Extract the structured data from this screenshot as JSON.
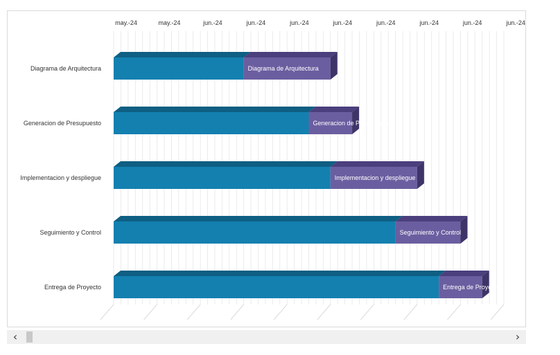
{
  "chart_data": {
    "type": "bar",
    "orientation": "horizontal",
    "stacked": true,
    "three_d": true,
    "x_tick_labels": [
      "may.-24",
      "may.-24",
      "jun.-24",
      "jun.-24",
      "jun.-24",
      "jun.-24",
      "jun.-24",
      "jun.-24",
      "jun.-24",
      "jun.-24"
    ],
    "xlim": [
      0,
      18
    ],
    "grid": true,
    "categories": [
      "Diagrama de Arquitectura",
      "Generacion de Presupuesto",
      "Implementacion y despliegue",
      "Seguimiento y Control",
      "Entrega de Proyecto"
    ],
    "series": [
      {
        "values": [
          6,
          9,
          10,
          13,
          15
        ],
        "color": "#1380b0",
        "top_color": "#0e5f83",
        "side_color": "#0c4f6e"
      },
      {
        "values": [
          4,
          2,
          4,
          3,
          2
        ],
        "color": "#6b5ea0",
        "top_color": "#4b3f7d",
        "side_color": "#3f3468",
        "data_labels": [
          "Diagrama de Arquitectura",
          "Generacion de Presupuesto",
          "Implementacion y despliegue",
          "Seguimiento y Control",
          "Entrega de Proyecto"
        ]
      }
    ]
  },
  "scrollbar": {
    "left_arrow": "‹",
    "right_arrow": "›"
  }
}
